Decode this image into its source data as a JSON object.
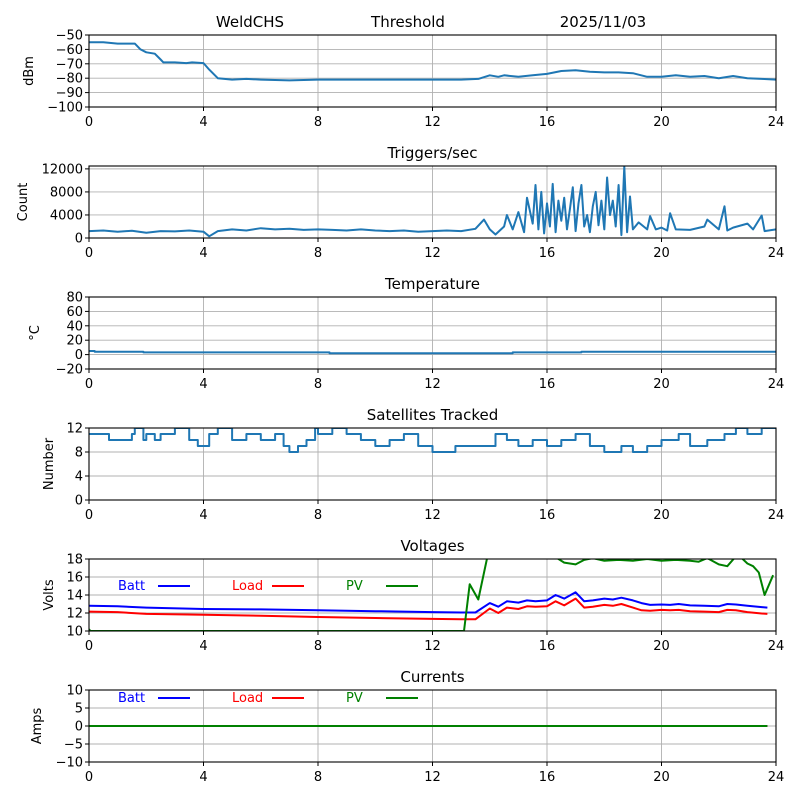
{
  "header": {
    "station": "WeldCHS",
    "mode": "Threshold",
    "date": "2025/11/03"
  },
  "chart_data": [
    {
      "id": "signal",
      "type": "line",
      "title": "",
      "xlabel": "",
      "ylabel": "dBm",
      "xlim": [
        0,
        24
      ],
      "ylim": [
        -100,
        -50
      ],
      "xticks": [
        0,
        4,
        8,
        12,
        16,
        20,
        24
      ],
      "yticks": [
        -100,
        -90,
        -80,
        -70,
        -60,
        -50
      ],
      "ytick_labels": [
        "−100",
        "−90",
        "−80",
        "−70",
        "−60",
        "−50"
      ],
      "grid": true,
      "series": [
        {
          "name": "signal",
          "color": "#1f77b4",
          "x": [
            0,
            0.5,
            1.0,
            1.6,
            1.8,
            2.0,
            2.3,
            2.5,
            2.6,
            3.0,
            3.4,
            3.6,
            4.0,
            4.2,
            4.5,
            5.0,
            5.5,
            6.0,
            7.0,
            8.0,
            9.0,
            10.0,
            11.0,
            12.0,
            13.0,
            13.6,
            14.0,
            14.3,
            14.5,
            15.0,
            15.5,
            16.0,
            16.5,
            17.0,
            17.5,
            18.0,
            18.5,
            19.0,
            19.5,
            20.0,
            20.5,
            21.0,
            21.5,
            22.0,
            22.5,
            23.0,
            23.5,
            24.0
          ],
          "y": [
            -55,
            -55,
            -56,
            -56,
            -60,
            -62,
            -63,
            -67,
            -69,
            -69,
            -69.5,
            -69,
            -69.5,
            -74,
            -80,
            -81,
            -80.5,
            -81,
            -81.5,
            -81,
            -81,
            -81,
            -81,
            -81,
            -81,
            -80.5,
            -78,
            -79,
            -78,
            -79,
            -78,
            -77,
            -75,
            -74.5,
            -75.5,
            -76,
            -76,
            -76.5,
            -79,
            -79,
            -78,
            -79,
            -78.5,
            -80,
            -78.5,
            -80,
            -80.5,
            -81
          ]
        }
      ]
    },
    {
      "id": "triggers",
      "type": "line",
      "title": "Triggers/sec",
      "xlabel": "",
      "ylabel": "Count",
      "xlim": [
        0,
        24
      ],
      "ylim": [
        0,
        12500
      ],
      "xticks": [
        0,
        4,
        8,
        12,
        16,
        20,
        24
      ],
      "yticks": [
        0,
        4000,
        8000,
        12000
      ],
      "ytick_labels": [
        "0",
        "4000",
        "8000",
        "12000"
      ],
      "grid": true,
      "series": [
        {
          "name": "triggers",
          "color": "#1f77b4",
          "x": [
            0,
            0.5,
            1.0,
            1.5,
            2.0,
            2.5,
            3.0,
            3.5,
            4.0,
            4.2,
            4.5,
            5.0,
            5.5,
            6.0,
            6.5,
            7.0,
            7.5,
            8.0,
            8.5,
            9.0,
            9.5,
            10.0,
            10.5,
            11.0,
            11.5,
            12.0,
            12.5,
            13.0,
            13.5,
            13.8,
            14.0,
            14.2,
            14.5,
            14.6,
            14.8,
            15.0,
            15.2,
            15.3,
            15.5,
            15.6,
            15.7,
            15.8,
            15.9,
            16.0,
            16.1,
            16.2,
            16.3,
            16.4,
            16.5,
            16.6,
            16.7,
            16.8,
            16.9,
            17.0,
            17.1,
            17.2,
            17.3,
            17.4,
            17.5,
            17.6,
            17.7,
            17.8,
            17.9,
            18.0,
            18.1,
            18.2,
            18.3,
            18.4,
            18.5,
            18.6,
            18.7,
            18.8,
            18.9,
            19.0,
            19.2,
            19.5,
            19.6,
            19.8,
            20.0,
            20.2,
            20.3,
            20.5,
            21.0,
            21.5,
            21.6,
            22.0,
            22.2,
            22.3,
            22.5,
            23.0,
            23.2,
            23.5,
            23.6,
            24.0
          ],
          "y": [
            1200,
            1300,
            1100,
            1250,
            900,
            1200,
            1150,
            1300,
            1100,
            300,
            1200,
            1500,
            1300,
            1700,
            1500,
            1600,
            1400,
            1500,
            1400,
            1300,
            1500,
            1300,
            1200,
            1300,
            1100,
            1200,
            1300,
            1200,
            1600,
            3200,
            1500,
            600,
            2000,
            4000,
            1500,
            4500,
            1000,
            7000,
            2500,
            9200,
            1500,
            8000,
            800,
            6000,
            2000,
            9400,
            1000,
            6500,
            3000,
            7000,
            1500,
            5000,
            8800,
            1200,
            6000,
            9200,
            2000,
            4000,
            1000,
            5500,
            8000,
            2200,
            6500,
            1500,
            10500,
            4000,
            6500,
            2000,
            9200,
            500,
            12400,
            1000,
            7200,
            1500,
            2700,
            1500,
            3800,
            1500,
            1800,
            1300,
            4300,
            1500,
            1400,
            2000,
            3200,
            1500,
            5500,
            1300,
            1800,
            2500,
            1500,
            3900,
            1200,
            1500
          ]
        }
      ]
    },
    {
      "id": "temperature",
      "type": "line",
      "title": "Temperature",
      "xlabel": "",
      "ylabel": "°C",
      "xlim": [
        0,
        24
      ],
      "ylim": [
        -20,
        80
      ],
      "xticks": [
        0,
        4,
        8,
        12,
        16,
        20,
        24
      ],
      "yticks": [
        -20,
        0,
        20,
        40,
        60,
        80
      ],
      "ytick_labels": [
        "−20",
        "0",
        "20",
        "40",
        "60",
        "80"
      ],
      "grid": true,
      "series": [
        {
          "name": "temperature",
          "color": "#1f77b4",
          "x": [
            0,
            0.2,
            0.2,
            1.9,
            1.9,
            8.4,
            8.4,
            14.8,
            14.8,
            17.2,
            17.2,
            24
          ],
          "y": [
            5,
            5,
            4,
            4,
            3,
            3,
            2,
            2,
            3,
            3,
            4,
            4
          ]
        }
      ]
    },
    {
      "id": "satellites",
      "type": "line",
      "title": "Satellites Tracked",
      "xlabel": "",
      "ylabel": "Number",
      "xlim": [
        0,
        24
      ],
      "ylim": [
        0,
        12
      ],
      "xticks": [
        0,
        4,
        8,
        12,
        16,
        20,
        24
      ],
      "yticks": [
        0,
        4,
        8,
        12
      ],
      "ytick_labels": [
        "0",
        "4",
        "8",
        "12"
      ],
      "grid": true,
      "series": [
        {
          "name": "satellites",
          "color": "#1f77b4",
          "x": [
            0,
            0.7,
            0.7,
            1.5,
            1.5,
            1.6,
            1.6,
            1.9,
            1.9,
            2.0,
            2.0,
            2.3,
            2.3,
            2.5,
            2.5,
            3.0,
            3.0,
            3.5,
            3.5,
            3.8,
            3.8,
            4.2,
            4.2,
            4.5,
            4.5,
            5.0,
            5.0,
            5.5,
            5.5,
            6.0,
            6.0,
            6.5,
            6.5,
            6.8,
            6.8,
            7.0,
            7.0,
            7.3,
            7.3,
            7.6,
            7.6,
            7.9,
            7.9,
            8.0,
            8.0,
            8.5,
            8.5,
            9.0,
            9.0,
            9.5,
            9.5,
            10.0,
            10.0,
            10.5,
            10.5,
            11.0,
            11.0,
            11.5,
            11.5,
            12.0,
            12.0,
            12.8,
            12.8,
            13.0,
            13.0,
            14.2,
            14.2,
            14.6,
            14.6,
            15.0,
            15.0,
            15.5,
            15.5,
            16.0,
            16.0,
            16.5,
            16.5,
            17.0,
            17.0,
            17.5,
            17.5,
            18.0,
            18.0,
            18.6,
            18.6,
            19.0,
            19.0,
            19.5,
            19.5,
            20.0,
            20.0,
            20.6,
            20.6,
            21.0,
            21.0,
            21.6,
            21.6,
            22.2,
            22.2,
            22.6,
            22.6,
            23.0,
            23.0,
            23.5,
            23.5,
            24.0
          ],
          "y": [
            11,
            11,
            10,
            10,
            11,
            11,
            12,
            12,
            10,
            10,
            11,
            11,
            10,
            10,
            11,
            11,
            12,
            12,
            10,
            10,
            9,
            9,
            11,
            11,
            12,
            12,
            10,
            10,
            11,
            11,
            10,
            10,
            11,
            11,
            9,
            9,
            8,
            8,
            9,
            9,
            10,
            10,
            12,
            12,
            11,
            11,
            12,
            12,
            11,
            11,
            10,
            10,
            9,
            9,
            10,
            10,
            11,
            11,
            9,
            9,
            8,
            8,
            9,
            9,
            9,
            9,
            11,
            11,
            10,
            10,
            9,
            9,
            10,
            10,
            9,
            9,
            10,
            10,
            11,
            11,
            9,
            9,
            8,
            8,
            9,
            9,
            8,
            8,
            9,
            9,
            10,
            10,
            11,
            11,
            9,
            9,
            10,
            10,
            11,
            11,
            12,
            12,
            11,
            11,
            12,
            12
          ]
        }
      ]
    },
    {
      "id": "voltages",
      "type": "line",
      "title": "Voltages",
      "xlabel": "",
      "ylabel": "Volts",
      "xlim": [
        0,
        24
      ],
      "ylim": [
        10,
        18
      ],
      "xticks": [
        0,
        4,
        8,
        12,
        16,
        20,
        24
      ],
      "yticks": [
        10,
        12,
        14,
        16,
        18
      ],
      "ytick_labels": [
        "10",
        "12",
        "14",
        "16",
        "18"
      ],
      "grid": true,
      "legend": "top-left-inline",
      "series": [
        {
          "name": "Batt",
          "color": "#0000ff",
          "x": [
            0,
            1,
            2,
            4,
            6,
            8,
            10,
            12,
            13,
            13.5,
            14,
            14.3,
            14.6,
            15,
            15.3,
            15.6,
            16,
            16.3,
            16.6,
            17,
            17.3,
            17.6,
            18,
            18.3,
            18.6,
            19,
            19.3,
            19.6,
            20,
            20.3,
            20.6,
            21,
            21.5,
            22,
            22.3,
            22.6,
            23,
            23.5,
            23.7
          ],
          "y": [
            12.8,
            12.75,
            12.6,
            12.45,
            12.4,
            12.3,
            12.2,
            12.1,
            12.05,
            12.05,
            13.1,
            12.7,
            13.3,
            13.15,
            13.4,
            13.3,
            13.4,
            14.0,
            13.6,
            14.3,
            13.3,
            13.4,
            13.6,
            13.5,
            13.7,
            13.4,
            13.1,
            12.9,
            12.95,
            12.9,
            13.0,
            12.85,
            12.8,
            12.75,
            13.0,
            12.95,
            12.8,
            12.65,
            12.6
          ]
        },
        {
          "name": "Load",
          "color": "#ff0000",
          "x": [
            0,
            1,
            2,
            4,
            6,
            8,
            10,
            12,
            13,
            13.5,
            14,
            14.3,
            14.6,
            15,
            15.3,
            15.6,
            16,
            16.3,
            16.6,
            17,
            17.3,
            17.6,
            18,
            18.3,
            18.6,
            19,
            19.3,
            19.6,
            20,
            20.3,
            20.6,
            21,
            21.5,
            22,
            22.3,
            22.6,
            23,
            23.5,
            23.7
          ],
          "y": [
            12.15,
            12.1,
            11.9,
            11.8,
            11.7,
            11.55,
            11.45,
            11.35,
            11.3,
            11.3,
            12.5,
            12.0,
            12.6,
            12.45,
            12.75,
            12.7,
            12.75,
            13.3,
            12.85,
            13.6,
            12.6,
            12.7,
            12.9,
            12.8,
            13.0,
            12.6,
            12.3,
            12.25,
            12.35,
            12.3,
            12.35,
            12.2,
            12.15,
            12.1,
            12.35,
            12.3,
            12.1,
            11.95,
            11.9
          ]
        },
        {
          "name": "PV",
          "color": "#008000",
          "x": [
            0,
            0.05,
            13.1,
            13.3,
            13.6,
            13.9,
            14.1,
            16.3,
            16.6,
            17.0,
            17.3,
            17.6,
            18.0,
            18.5,
            19.0,
            19.5,
            20.0,
            20.5,
            21.0,
            21.3,
            21.6,
            22.0,
            22.3,
            22.6,
            22.8,
            23.0,
            23.2,
            23.4,
            23.6,
            23.9
          ],
          "y": [
            10.2,
            10.0,
            10.0,
            15.2,
            13.5,
            18.0,
            18.5,
            18.2,
            17.6,
            17.4,
            17.9,
            18.1,
            17.8,
            17.9,
            17.8,
            18.0,
            17.8,
            17.9,
            17.8,
            17.7,
            18.1,
            17.4,
            17.2,
            18.3,
            18.1,
            17.5,
            17.2,
            16.5,
            14.0,
            16.2
          ]
        }
      ]
    },
    {
      "id": "currents",
      "type": "line",
      "title": "Currents",
      "xlabel": "",
      "ylabel": "Amps",
      "xlim": [
        0,
        24
      ],
      "ylim": [
        -10,
        10
      ],
      "xticks": [
        0,
        4,
        8,
        12,
        16,
        20,
        24
      ],
      "yticks": [
        -10,
        -5,
        0,
        5,
        10
      ],
      "ytick_labels": [
        "−10",
        "−5",
        "0",
        "5",
        "10"
      ],
      "grid": true,
      "legend": "top-left-inline",
      "series": [
        {
          "name": "Batt",
          "color": "#0000ff",
          "x": [
            0,
            23.7
          ],
          "y": [
            0,
            0
          ]
        },
        {
          "name": "Load",
          "color": "#ff0000",
          "x": [
            0,
            23.7
          ],
          "y": [
            0,
            0
          ]
        },
        {
          "name": "PV",
          "color": "#008000",
          "x": [
            0,
            23.7
          ],
          "y": [
            0,
            0
          ]
        }
      ]
    }
  ]
}
